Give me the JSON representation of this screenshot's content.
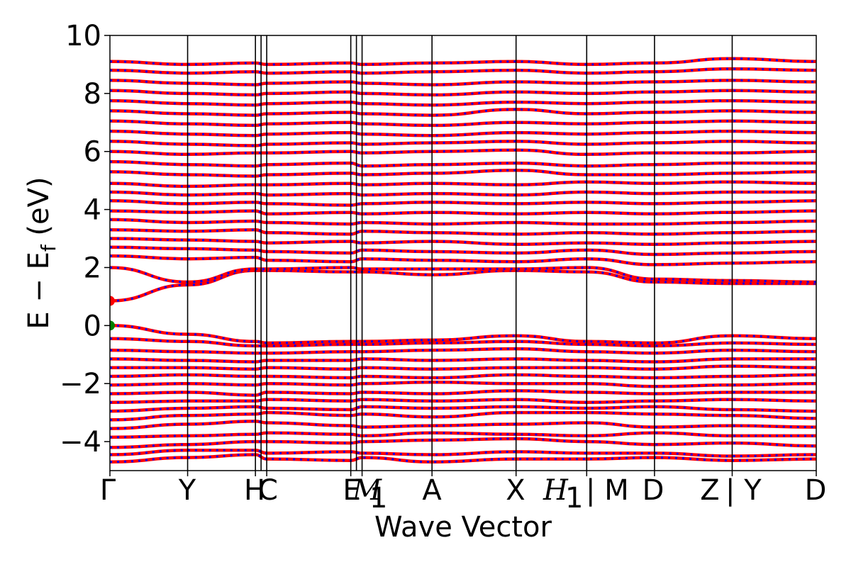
{
  "chart_data": {
    "type": "line",
    "title": "",
    "xlabel": "Wave Vector",
    "ylabel": "E − E_f (eV)",
    "ylabel_main": "E − E",
    "ylabel_sub": "f",
    "ylabel_tail": " (eV)",
    "ylim": [
      -5,
      10
    ],
    "yticks": [
      -4,
      -2,
      0,
      2,
      4,
      6,
      8,
      10
    ],
    "ytick_labels": [
      "−4",
      "−2",
      "0",
      "2",
      "4",
      "6",
      "8",
      "10"
    ],
    "xlim": [
      0,
      1
    ],
    "kpoints": [
      {
        "label": "Γ",
        "x": 0.0
      },
      {
        "label": "Y",
        "x": 0.11
      },
      {
        "label": "H",
        "x": 0.206
      },
      {
        "label": "C",
        "x": 0.222
      },
      {
        "label": "E",
        "x": 0.341
      },
      {
        "label": "M₁",
        "x": 0.357
      },
      {
        "label": "A",
        "x": 0.456
      },
      {
        "label": "X",
        "x": 0.575
      },
      {
        "label": "H₁ | M",
        "x": 0.675
      },
      {
        "label": "D",
        "x": 0.771
      },
      {
        "label": "Z | Y",
        "x": 0.881
      },
      {
        "label": "D",
        "x": 1.0
      }
    ],
    "kpath_tick_labels": [
      "Γ",
      "Y",
      "H",
      "C",
      "E",
      "M",
      "A",
      "X",
      "H",
      "| M",
      "D",
      "Z",
      "| Y",
      "D"
    ],
    "subscripts": [
      "1",
      "1"
    ],
    "series": [
      {
        "color": "#ff0000",
        "style": "solid"
      },
      {
        "color": "#0000ff",
        "style": "dotted"
      }
    ],
    "markers": [
      {
        "label": "VBM",
        "x": 0.0,
        "y": 0.0,
        "color": "#008000"
      },
      {
        "label": "CBM",
        "x": 0.0,
        "y": 0.85,
        "color": "#ff0000"
      }
    ],
    "bands": [
      [
        -4.7,
        -4.55,
        -4.45,
        -4.6,
        -4.65,
        -4.55,
        -4.7,
        -4.6,
        -4.6,
        -4.55,
        -4.65,
        -4.6
      ],
      [
        -4.45,
        -4.3,
        -4.3,
        -4.4,
        -4.35,
        -4.4,
        -4.45,
        -4.35,
        -4.4,
        -4.4,
        -4.5,
        -4.45
      ],
      [
        -4.2,
        -4.1,
        -4.0,
        -4.0,
        -4.05,
        -4.0,
        -3.95,
        -3.9,
        -4.0,
        -4.1,
        -4.05,
        -4.15
      ],
      [
        -3.85,
        -3.8,
        -3.75,
        -3.7,
        -3.75,
        -3.8,
        -3.7,
        -3.75,
        -3.8,
        -3.7,
        -3.8,
        -3.8
      ],
      [
        -3.55,
        -3.4,
        -3.3,
        -3.35,
        -3.45,
        -3.5,
        -3.45,
        -3.4,
        -3.35,
        -3.5,
        -3.45,
        -3.5
      ],
      [
        -3.25,
        -3.1,
        -3.05,
        -3.0,
        -3.1,
        -3.05,
        -3.15,
        -3.0,
        -3.0,
        -3.05,
        -3.1,
        -3.2
      ],
      [
        -2.95,
        -2.85,
        -2.8,
        -2.85,
        -2.9,
        -2.8,
        -2.85,
        -2.8,
        -2.85,
        -2.8,
        -2.9,
        -2.95
      ],
      [
        -2.65,
        -2.6,
        -2.6,
        -2.55,
        -2.6,
        -2.55,
        -2.6,
        -2.55,
        -2.65,
        -2.6,
        -2.55,
        -2.6
      ],
      [
        -2.35,
        -2.3,
        -2.4,
        -2.3,
        -2.35,
        -2.3,
        -2.35,
        -2.25,
        -2.3,
        -2.35,
        -2.3,
        -2.3
      ],
      [
        -2.05,
        -2.0,
        -2.05,
        -2.0,
        -2.05,
        -2.0,
        -1.95,
        -2.0,
        -2.0,
        -2.1,
        -2.05,
        -2.0
      ],
      [
        -1.75,
        -1.7,
        -1.75,
        -1.75,
        -1.8,
        -1.75,
        -1.8,
        -1.7,
        -1.75,
        -1.8,
        -1.75,
        -1.7
      ],
      [
        -1.45,
        -1.45,
        -1.5,
        -1.45,
        -1.5,
        -1.45,
        -1.5,
        -1.45,
        -1.45,
        -1.5,
        -1.4,
        -1.45
      ],
      [
        -1.15,
        -1.2,
        -1.25,
        -1.2,
        -1.2,
        -1.15,
        -1.2,
        -1.15,
        -1.2,
        -1.25,
        -1.15,
        -1.15
      ],
      [
        -0.85,
        -0.9,
        -0.95,
        -0.95,
        -0.9,
        -0.9,
        -0.85,
        -0.8,
        -0.9,
        -0.95,
        -0.85,
        -0.9
      ],
      [
        -0.45,
        -0.55,
        -0.7,
        -0.7,
        -0.65,
        -0.65,
        -0.6,
        -0.55,
        -0.65,
        -0.7,
        -0.6,
        -0.65
      ],
      [
        0.0,
        -0.3,
        -0.55,
        -0.6,
        -0.55,
        -0.55,
        -0.5,
        -0.35,
        -0.55,
        -0.6,
        -0.35,
        -0.45
      ],
      [
        0.85,
        1.4,
        1.9,
        1.9,
        1.85,
        1.85,
        1.75,
        1.9,
        1.85,
        1.5,
        1.45,
        1.45
      ],
      [
        2.0,
        1.5,
        1.95,
        1.95,
        2.0,
        1.95,
        1.95,
        1.95,
        2.0,
        1.6,
        1.55,
        1.5
      ],
      [
        2.4,
        2.3,
        2.35,
        2.25,
        2.2,
        2.3,
        2.25,
        2.2,
        2.3,
        2.1,
        2.15,
        2.2
      ],
      [
        2.7,
        2.65,
        2.6,
        2.55,
        2.5,
        2.6,
        2.55,
        2.5,
        2.6,
        2.45,
        2.5,
        2.55
      ],
      [
        3.0,
        2.95,
        2.9,
        2.85,
        2.9,
        2.85,
        2.9,
        2.8,
        2.85,
        2.8,
        2.85,
        2.9
      ],
      [
        3.3,
        3.25,
        3.3,
        3.2,
        3.15,
        3.25,
        3.2,
        3.15,
        3.2,
        3.15,
        3.2,
        3.25
      ],
      [
        3.65,
        3.55,
        3.6,
        3.55,
        3.5,
        3.55,
        3.5,
        3.55,
        3.5,
        3.5,
        3.55,
        3.6
      ],
      [
        3.95,
        3.9,
        3.95,
        3.85,
        3.9,
        3.85,
        3.9,
        3.85,
        3.9,
        3.85,
        3.9,
        3.95
      ],
      [
        4.3,
        4.2,
        4.25,
        4.2,
        4.15,
        4.2,
        4.25,
        4.2,
        4.25,
        4.2,
        4.25,
        4.3
      ],
      [
        4.6,
        4.5,
        4.55,
        4.5,
        4.55,
        4.5,
        4.55,
        4.5,
        4.6,
        4.55,
        4.6,
        4.6
      ],
      [
        4.9,
        4.8,
        4.85,
        4.85,
        4.9,
        4.85,
        4.9,
        4.85,
        4.95,
        4.9,
        4.95,
        4.9
      ],
      [
        5.3,
        5.2,
        5.15,
        5.2,
        5.25,
        5.2,
        5.25,
        5.35,
        5.2,
        5.2,
        5.25,
        5.3
      ],
      [
        5.65,
        5.55,
        5.5,
        5.55,
        5.6,
        5.5,
        5.55,
        5.6,
        5.5,
        5.55,
        5.6,
        5.6
      ],
      [
        6.0,
        5.9,
        5.95,
        5.95,
        6.0,
        5.95,
        6.0,
        6.05,
        5.9,
        5.95,
        5.95,
        6.0
      ],
      [
        6.35,
        6.25,
        6.2,
        6.25,
        6.3,
        6.25,
        6.3,
        6.35,
        6.25,
        6.3,
        6.35,
        6.3
      ],
      [
        6.7,
        6.6,
        6.55,
        6.6,
        6.65,
        6.6,
        6.55,
        6.65,
        6.6,
        6.65,
        6.7,
        6.65
      ],
      [
        7.05,
        6.95,
        6.9,
        6.95,
        7.0,
        6.95,
        6.9,
        7.0,
        6.95,
        7.0,
        7.05,
        7.0
      ],
      [
        7.4,
        7.3,
        7.25,
        7.3,
        7.35,
        7.3,
        7.25,
        7.45,
        7.3,
        7.35,
        7.4,
        7.35
      ],
      [
        7.75,
        7.65,
        7.6,
        7.65,
        7.7,
        7.65,
        7.6,
        7.7,
        7.65,
        7.7,
        7.75,
        7.7
      ],
      [
        8.1,
        8.0,
        7.95,
        8.0,
        8.05,
        8.0,
        7.95,
        8.05,
        8.0,
        8.05,
        8.1,
        8.05
      ],
      [
        8.45,
        8.35,
        8.3,
        8.35,
        8.4,
        8.35,
        8.3,
        8.4,
        8.35,
        8.4,
        8.45,
        8.4
      ],
      [
        8.8,
        8.7,
        8.75,
        8.7,
        8.75,
        8.7,
        8.75,
        8.8,
        8.7,
        8.75,
        8.85,
        8.8
      ],
      [
        9.1,
        9.0,
        9.05,
        9.0,
        9.05,
        9.0,
        9.05,
        9.1,
        9.0,
        9.05,
        9.2,
        9.1
      ]
    ]
  }
}
